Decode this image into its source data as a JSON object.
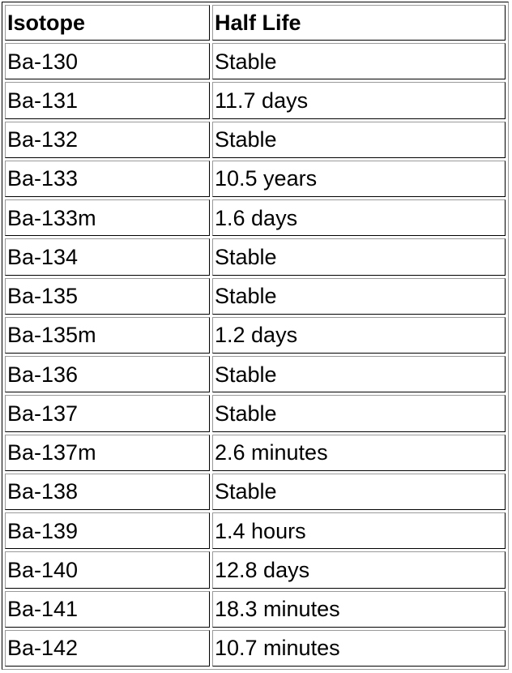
{
  "table": {
    "headers": [
      "Isotope",
      "Half Life"
    ],
    "rows": [
      [
        "Ba-130",
        "Stable"
      ],
      [
        "Ba-131",
        "11.7 days"
      ],
      [
        "Ba-132",
        "Stable"
      ],
      [
        "Ba-133",
        "10.5 years"
      ],
      [
        "Ba-133m",
        "1.6 days"
      ],
      [
        "Ba-134",
        "Stable"
      ],
      [
        "Ba-135",
        "Stable"
      ],
      [
        "Ba-135m",
        "1.2 days"
      ],
      [
        "Ba-136",
        "Stable"
      ],
      [
        "Ba-137",
        "Stable"
      ],
      [
        "Ba-137m",
        "2.6 minutes"
      ],
      [
        "Ba-138",
        "Stable"
      ],
      [
        "Ba-139",
        "1.4 hours"
      ],
      [
        "Ba-140",
        "12.8 days"
      ],
      [
        "Ba-141",
        "18.3 minutes"
      ],
      [
        "Ba-142",
        "10.7 minutes"
      ]
    ]
  }
}
